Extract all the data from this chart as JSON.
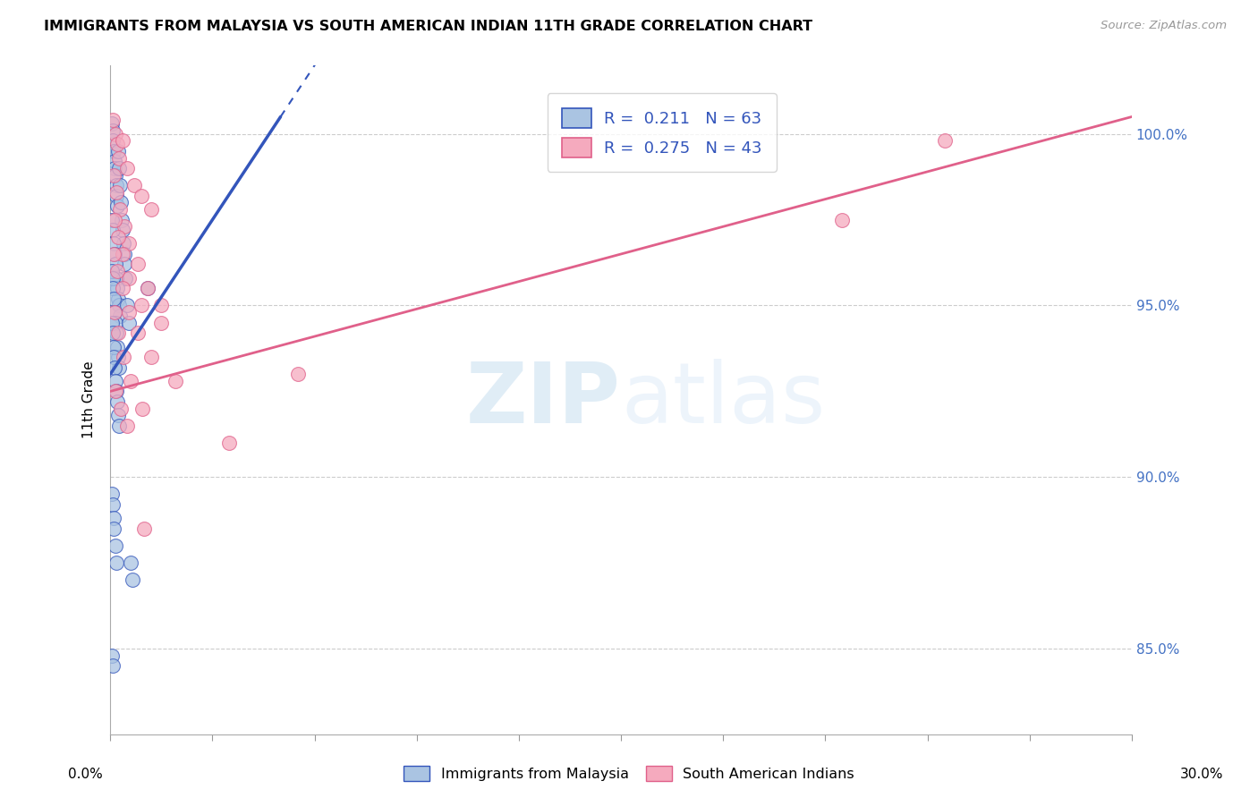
{
  "title": "IMMIGRANTS FROM MALAYSIA VS SOUTH AMERICAN INDIAN 11TH GRADE CORRELATION CHART",
  "source": "Source: ZipAtlas.com",
  "ylabel": "11th Grade",
  "xlim": [
    0.0,
    30.0
  ],
  "ylim": [
    82.5,
    102.0
  ],
  "y_ticks": [
    85.0,
    90.0,
    95.0,
    100.0
  ],
  "legend_labels": [
    "Immigrants from Malaysia",
    "South American Indians"
  ],
  "r1": 0.211,
  "n1": 63,
  "r2": 0.275,
  "n2": 43,
  "color_blue": "#aac4e2",
  "color_pink": "#f5aabe",
  "trendline_blue": "#3355bb",
  "trendline_pink": "#e0608a",
  "watermark_zip": "ZIP",
  "watermark_atlas": "atlas",
  "blue_scatter_x": [
    0.05,
    0.07,
    0.08,
    0.1,
    0.12,
    0.13,
    0.15,
    0.17,
    0.18,
    0.2,
    0.22,
    0.25,
    0.28,
    0.3,
    0.33,
    0.35,
    0.38,
    0.4,
    0.42,
    0.45,
    0.05,
    0.07,
    0.1,
    0.12,
    0.15,
    0.18,
    0.2,
    0.23,
    0.25,
    0.28,
    0.05,
    0.06,
    0.08,
    0.1,
    0.13,
    0.15,
    0.18,
    0.2,
    0.22,
    0.25,
    0.05,
    0.07,
    0.09,
    0.11,
    0.13,
    0.16,
    0.18,
    0.2,
    0.23,
    0.26,
    0.05,
    0.07,
    0.09,
    0.11,
    0.14,
    0.17,
    0.5,
    0.55,
    0.6,
    0.65,
    0.05,
    0.07,
    1.1
  ],
  "blue_scatter_y": [
    100.3,
    100.1,
    99.8,
    99.5,
    99.2,
    99.0,
    98.8,
    98.5,
    98.2,
    97.9,
    99.5,
    99.0,
    98.5,
    98.0,
    97.5,
    97.2,
    96.8,
    96.5,
    96.2,
    95.8,
    97.5,
    97.2,
    96.8,
    96.5,
    96.2,
    95.8,
    95.5,
    95.2,
    95.0,
    94.7,
    96.0,
    95.8,
    95.5,
    95.2,
    94.8,
    94.5,
    94.2,
    93.8,
    93.5,
    93.2,
    94.5,
    94.2,
    93.8,
    93.5,
    93.2,
    92.8,
    92.5,
    92.2,
    91.8,
    91.5,
    89.5,
    89.2,
    88.8,
    88.5,
    88.0,
    87.5,
    95.0,
    94.5,
    87.5,
    87.0,
    84.8,
    84.5,
    95.5
  ],
  "pink_scatter_x": [
    0.08,
    0.15,
    0.2,
    0.25,
    0.35,
    0.5,
    0.7,
    0.9,
    1.2,
    0.1,
    0.18,
    0.28,
    0.4,
    0.55,
    0.8,
    1.1,
    1.5,
    0.12,
    0.22,
    0.35,
    0.55,
    0.9,
    1.5,
    0.1,
    0.2,
    0.35,
    0.55,
    0.8,
    1.2,
    1.9,
    0.12,
    0.22,
    0.38,
    0.6,
    0.95,
    0.15,
    0.3,
    0.5,
    1.0,
    5.5,
    3.5,
    24.5,
    21.5
  ],
  "pink_scatter_y": [
    100.4,
    100.0,
    99.7,
    99.3,
    99.8,
    99.0,
    98.5,
    98.2,
    97.8,
    98.8,
    98.3,
    97.8,
    97.3,
    96.8,
    96.2,
    95.5,
    95.0,
    97.5,
    97.0,
    96.5,
    95.8,
    95.0,
    94.5,
    96.5,
    96.0,
    95.5,
    94.8,
    94.2,
    93.5,
    92.8,
    94.8,
    94.2,
    93.5,
    92.8,
    92.0,
    92.5,
    92.0,
    91.5,
    88.5,
    93.0,
    91.0,
    99.8,
    97.5
  ],
  "blue_trendline_x": [
    0.0,
    5.0
  ],
  "blue_trendline_y": [
    93.0,
    100.5
  ],
  "pink_trendline_x": [
    0.0,
    30.0
  ],
  "pink_trendline_y": [
    92.5,
    100.5
  ]
}
